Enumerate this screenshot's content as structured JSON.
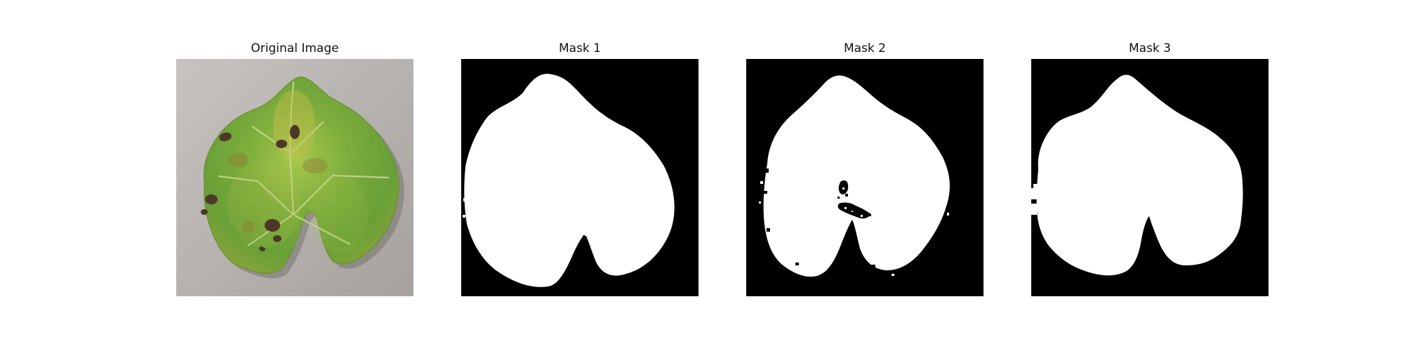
{
  "panels": [
    {
      "title": "Original Image"
    },
    {
      "title": "Mask 1"
    },
    {
      "title": "Mask 2"
    },
    {
      "title": "Mask 3"
    }
  ],
  "colors": {
    "background_gray": "#b9b6b3",
    "leaf_green": "#7cab3b",
    "leaf_yellow": "#a5bd3f",
    "leaf_spot": "#4f3a2a",
    "mask_background": "#000000",
    "mask_foreground": "#ffffff"
  }
}
